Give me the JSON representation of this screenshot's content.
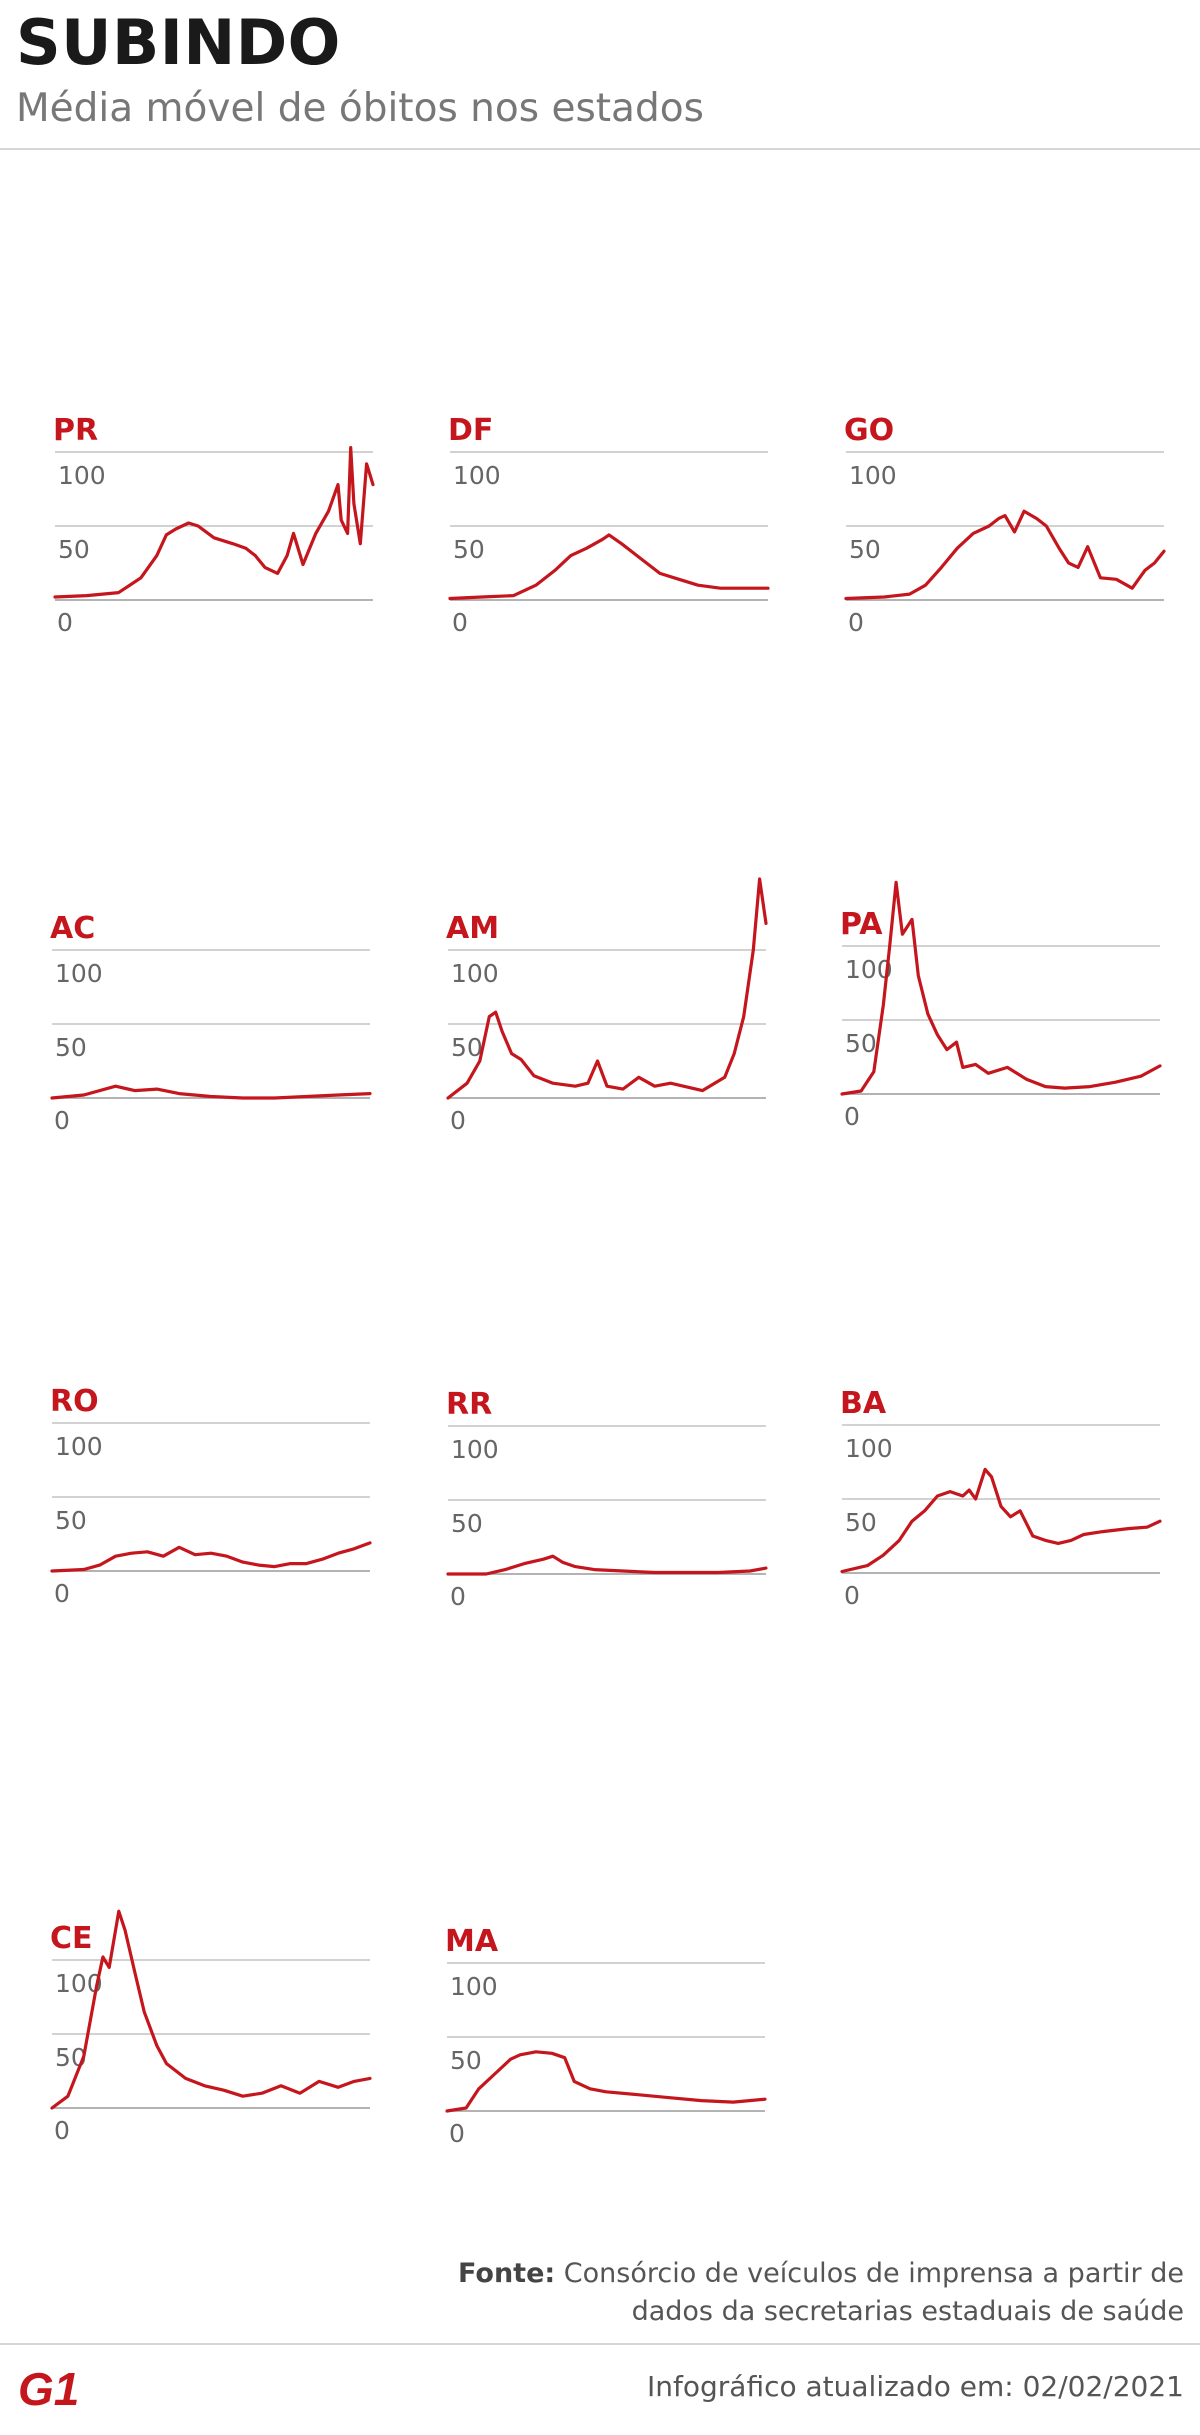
{
  "header": {
    "title": "SUBINDO",
    "subtitle": "Média móvel de óbitos nos estados"
  },
  "footer": {
    "source_label": "Fonte:",
    "source_text": "Consórcio de veículos de imprensa a partir de dados da secretarias estaduais de saúde",
    "updated": "Infográfico atualizado em: 02/02/2021",
    "logo_text": "G1"
  },
  "colors": {
    "line": "#c4161c",
    "label": "#c4161c",
    "grid": "#b8b8b8",
    "baseline": "#9a9a9a",
    "tick_text": "#666666"
  },
  "chart_data": [
    {
      "type": "line",
      "title": "PR",
      "yticks": [
        0,
        50,
        100
      ],
      "ylim": [
        0,
        100
      ],
      "points": [
        [
          0,
          2
        ],
        [
          0.1,
          3
        ],
        [
          0.2,
          5
        ],
        [
          0.27,
          15
        ],
        [
          0.32,
          30
        ],
        [
          0.35,
          44
        ],
        [
          0.38,
          48
        ],
        [
          0.42,
          52
        ],
        [
          0.45,
          50
        ],
        [
          0.5,
          42
        ],
        [
          0.56,
          38
        ],
        [
          0.6,
          35
        ],
        [
          0.63,
          30
        ],
        [
          0.66,
          22
        ],
        [
          0.7,
          18
        ],
        [
          0.73,
          30
        ],
        [
          0.75,
          45
        ],
        [
          0.78,
          24
        ],
        [
          0.82,
          45
        ],
        [
          0.86,
          60
        ],
        [
          0.89,
          78
        ],
        [
          0.9,
          54
        ],
        [
          0.92,
          45
        ],
        [
          0.93,
          103
        ],
        [
          0.94,
          65
        ],
        [
          0.96,
          38
        ],
        [
          0.98,
          92
        ],
        [
          1,
          78
        ]
      ]
    },
    {
      "type": "line",
      "title": "DF",
      "yticks": [
        0,
        50,
        100
      ],
      "ylim": [
        0,
        100
      ],
      "points": [
        [
          0,
          1
        ],
        [
          0.1,
          2
        ],
        [
          0.2,
          3
        ],
        [
          0.27,
          10
        ],
        [
          0.33,
          20
        ],
        [
          0.38,
          30
        ],
        [
          0.43,
          35
        ],
        [
          0.48,
          41
        ],
        [
          0.5,
          44
        ],
        [
          0.54,
          38
        ],
        [
          0.6,
          28
        ],
        [
          0.66,
          18
        ],
        [
          0.72,
          14
        ],
        [
          0.78,
          10
        ],
        [
          0.85,
          8
        ],
        [
          0.92,
          8
        ],
        [
          1,
          8
        ]
      ]
    },
    {
      "type": "line",
      "title": "GO",
      "yticks": [
        0,
        50,
        100
      ],
      "ylim": [
        0,
        100
      ],
      "points": [
        [
          0,
          1
        ],
        [
          0.12,
          2
        ],
        [
          0.2,
          4
        ],
        [
          0.25,
          10
        ],
        [
          0.3,
          22
        ],
        [
          0.35,
          35
        ],
        [
          0.4,
          45
        ],
        [
          0.45,
          50
        ],
        [
          0.48,
          55
        ],
        [
          0.5,
          57
        ],
        [
          0.53,
          46
        ],
        [
          0.56,
          60
        ],
        [
          0.6,
          55
        ],
        [
          0.63,
          50
        ],
        [
          0.67,
          35
        ],
        [
          0.7,
          25
        ],
        [
          0.73,
          22
        ],
        [
          0.76,
          36
        ],
        [
          0.8,
          15
        ],
        [
          0.85,
          14
        ],
        [
          0.9,
          8
        ],
        [
          0.94,
          20
        ],
        [
          0.97,
          25
        ],
        [
          1,
          33
        ]
      ]
    },
    {
      "type": "line",
      "title": "AC",
      "yticks": [
        0,
        50,
        100
      ],
      "ylim": [
        0,
        100
      ],
      "points": [
        [
          0,
          0
        ],
        [
          0.1,
          2
        ],
        [
          0.2,
          8
        ],
        [
          0.26,
          5
        ],
        [
          0.33,
          6
        ],
        [
          0.4,
          3
        ],
        [
          0.5,
          1
        ],
        [
          0.6,
          0
        ],
        [
          0.7,
          0
        ],
        [
          0.8,
          1
        ],
        [
          0.9,
          2
        ],
        [
          1,
          3
        ]
      ]
    },
    {
      "type": "line",
      "title": "AM",
      "yticks": [
        0,
        50,
        100
      ],
      "ylim": [
        0,
        100
      ],
      "points": [
        [
          0,
          0
        ],
        [
          0.06,
          10
        ],
        [
          0.1,
          25
        ],
        [
          0.13,
          55
        ],
        [
          0.15,
          58
        ],
        [
          0.17,
          45
        ],
        [
          0.2,
          30
        ],
        [
          0.23,
          26
        ],
        [
          0.27,
          15
        ],
        [
          0.33,
          10
        ],
        [
          0.4,
          8
        ],
        [
          0.44,
          10
        ],
        [
          0.47,
          25
        ],
        [
          0.5,
          8
        ],
        [
          0.55,
          6
        ],
        [
          0.6,
          14
        ],
        [
          0.65,
          8
        ],
        [
          0.7,
          10
        ],
        [
          0.8,
          5
        ],
        [
          0.87,
          14
        ],
        [
          0.9,
          30
        ],
        [
          0.93,
          55
        ],
        [
          0.96,
          100
        ],
        [
          0.98,
          148
        ],
        [
          1,
          118
        ]
      ]
    },
    {
      "type": "line",
      "title": "PA",
      "yticks": [
        0,
        50,
        100
      ],
      "ylim": [
        0,
        100
      ],
      "points": [
        [
          0,
          0
        ],
        [
          0.06,
          2
        ],
        [
          0.1,
          15
        ],
        [
          0.13,
          60
        ],
        [
          0.15,
          100
        ],
        [
          0.17,
          143
        ],
        [
          0.19,
          108
        ],
        [
          0.22,
          118
        ],
        [
          0.24,
          80
        ],
        [
          0.27,
          54
        ],
        [
          0.3,
          40
        ],
        [
          0.33,
          30
        ],
        [
          0.36,
          35
        ],
        [
          0.38,
          18
        ],
        [
          0.42,
          20
        ],
        [
          0.46,
          14
        ],
        [
          0.52,
          18
        ],
        [
          0.58,
          10
        ],
        [
          0.64,
          5
        ],
        [
          0.7,
          4
        ],
        [
          0.78,
          5
        ],
        [
          0.86,
          8
        ],
        [
          0.94,
          12
        ],
        [
          1,
          19
        ]
      ]
    },
    {
      "type": "line",
      "title": "RO",
      "yticks": [
        0,
        50,
        100
      ],
      "ylim": [
        0,
        100
      ],
      "points": [
        [
          0,
          0
        ],
        [
          0.1,
          1
        ],
        [
          0.15,
          4
        ],
        [
          0.2,
          10
        ],
        [
          0.25,
          12
        ],
        [
          0.3,
          13
        ],
        [
          0.35,
          10
        ],
        [
          0.4,
          16
        ],
        [
          0.45,
          11
        ],
        [
          0.5,
          12
        ],
        [
          0.55,
          10
        ],
        [
          0.6,
          6
        ],
        [
          0.65,
          4
        ],
        [
          0.7,
          3
        ],
        [
          0.75,
          5
        ],
        [
          0.8,
          5
        ],
        [
          0.85,
          8
        ],
        [
          0.9,
          12
        ],
        [
          0.95,
          15
        ],
        [
          1,
          19
        ]
      ]
    },
    {
      "type": "line",
      "title": "RR",
      "yticks": [
        0,
        50,
        100
      ],
      "ylim": [
        0,
        100
      ],
      "points": [
        [
          0,
          0
        ],
        [
          0.12,
          0
        ],
        [
          0.18,
          3
        ],
        [
          0.24,
          7
        ],
        [
          0.3,
          10
        ],
        [
          0.33,
          12
        ],
        [
          0.36,
          8
        ],
        [
          0.4,
          5
        ],
        [
          0.46,
          3
        ],
        [
          0.55,
          2
        ],
        [
          0.65,
          1
        ],
        [
          0.75,
          1
        ],
        [
          0.85,
          1
        ],
        [
          0.95,
          2
        ],
        [
          1,
          4
        ]
      ]
    },
    {
      "type": "line",
      "title": "BA",
      "yticks": [
        0,
        50,
        100
      ],
      "ylim": [
        0,
        100
      ],
      "points": [
        [
          0,
          1
        ],
        [
          0.08,
          5
        ],
        [
          0.13,
          12
        ],
        [
          0.18,
          22
        ],
        [
          0.22,
          35
        ],
        [
          0.26,
          42
        ],
        [
          0.3,
          52
        ],
        [
          0.34,
          55
        ],
        [
          0.38,
          52
        ],
        [
          0.4,
          56
        ],
        [
          0.42,
          50
        ],
        [
          0.45,
          70
        ],
        [
          0.47,
          65
        ],
        [
          0.5,
          45
        ],
        [
          0.53,
          38
        ],
        [
          0.56,
          42
        ],
        [
          0.6,
          25
        ],
        [
          0.64,
          22
        ],
        [
          0.68,
          20
        ],
        [
          0.72,
          22
        ],
        [
          0.76,
          26
        ],
        [
          0.82,
          28
        ],
        [
          0.9,
          30
        ],
        [
          0.96,
          31
        ],
        [
          1,
          35
        ]
      ]
    },
    {
      "type": "line",
      "title": "CE",
      "yticks": [
        0,
        50,
        100
      ],
      "ylim": [
        0,
        100
      ],
      "points": [
        [
          0,
          0
        ],
        [
          0.05,
          8
        ],
        [
          0.1,
          35
        ],
        [
          0.14,
          82
        ],
        [
          0.16,
          102
        ],
        [
          0.18,
          95
        ],
        [
          0.21,
          133
        ],
        [
          0.23,
          120
        ],
        [
          0.26,
          92
        ],
        [
          0.29,
          65
        ],
        [
          0.33,
          42
        ],
        [
          0.36,
          30
        ],
        [
          0.42,
          20
        ],
        [
          0.48,
          15
        ],
        [
          0.54,
          12
        ],
        [
          0.6,
          8
        ],
        [
          0.66,
          10
        ],
        [
          0.72,
          15
        ],
        [
          0.78,
          10
        ],
        [
          0.84,
          18
        ],
        [
          0.9,
          14
        ],
        [
          0.95,
          18
        ],
        [
          1,
          20
        ]
      ]
    },
    {
      "type": "line",
      "title": "MA",
      "yticks": [
        0,
        50,
        100
      ],
      "ylim": [
        0,
        100
      ],
      "points": [
        [
          0,
          0
        ],
        [
          0.06,
          2
        ],
        [
          0.1,
          15
        ],
        [
          0.15,
          25
        ],
        [
          0.2,
          35
        ],
        [
          0.23,
          38
        ],
        [
          0.28,
          40
        ],
        [
          0.33,
          39
        ],
        [
          0.37,
          36
        ],
        [
          0.4,
          20
        ],
        [
          0.45,
          15
        ],
        [
          0.5,
          13
        ],
        [
          0.6,
          11
        ],
        [
          0.7,
          9
        ],
        [
          0.8,
          7
        ],
        [
          0.9,
          6
        ],
        [
          1,
          8
        ]
      ]
    }
  ]
}
